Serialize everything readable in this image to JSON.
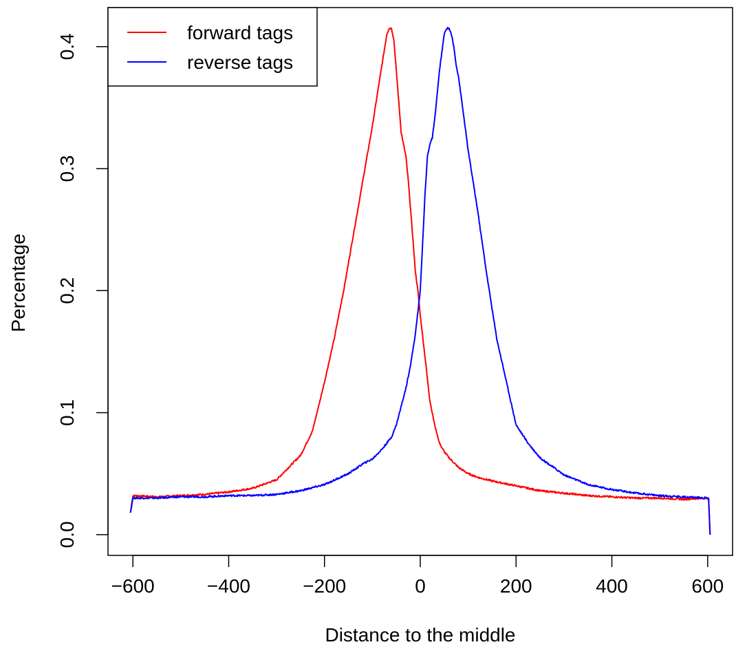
{
  "chart_data": {
    "type": "line",
    "title": "",
    "xlabel": "Distance to the middle",
    "ylabel": "Percentage",
    "xlim": [
      -652,
      652
    ],
    "ylim": [
      -0.017,
      0.432
    ],
    "x_ticks": [
      -600,
      -400,
      -200,
      0,
      200,
      400,
      600
    ],
    "x_tick_labels": [
      "−600",
      "−400",
      "−200",
      "0",
      "200",
      "400",
      "600"
    ],
    "y_ticks": [
      0.0,
      0.1,
      0.2,
      0.3,
      0.4
    ],
    "y_tick_labels": [
      "0.0",
      "0.1",
      "0.2",
      "0.3",
      "0.4"
    ],
    "grid": false,
    "legend_position": "top-left",
    "series": [
      {
        "name": "forward tags",
        "color": "#ff0000",
        "x": [
          -605,
          -600,
          -550,
          -500,
          -450,
          -400,
          -350,
          -300,
          -275,
          -250,
          -225,
          -200,
          -180,
          -160,
          -140,
          -120,
          -100,
          -90,
          -80,
          -70,
          -65,
          -60,
          -55,
          -50,
          -45,
          -40,
          -35,
          -30,
          -25,
          -20,
          -15,
          -10,
          -5,
          0,
          10,
          20,
          30,
          40,
          50,
          60,
          70,
          80,
          100,
          120,
          150,
          175,
          200,
          250,
          300,
          350,
          400,
          450,
          500,
          550,
          600,
          602,
          605
        ],
        "y": [
          0.018,
          0.032,
          0.031,
          0.032,
          0.033,
          0.035,
          0.038,
          0.045,
          0.055,
          0.065,
          0.085,
          0.125,
          0.16,
          0.2,
          0.245,
          0.29,
          0.335,
          0.36,
          0.385,
          0.41,
          0.415,
          0.415,
          0.405,
          0.38,
          0.355,
          0.33,
          0.32,
          0.31,
          0.29,
          0.265,
          0.24,
          0.215,
          0.2,
          0.18,
          0.145,
          0.11,
          0.09,
          0.075,
          0.068,
          0.063,
          0.059,
          0.055,
          0.05,
          0.047,
          0.044,
          0.042,
          0.04,
          0.036,
          0.034,
          0.032,
          0.031,
          0.03,
          0.03,
          0.029,
          0.03,
          0.029,
          0.0
        ],
        "points": 1211
      },
      {
        "name": "reverse tags",
        "color": "#0000ff",
        "x": [
          -605,
          -600,
          -550,
          -500,
          -450,
          -400,
          -350,
          -300,
          -250,
          -200,
          -150,
          -120,
          -100,
          -80,
          -60,
          -50,
          -40,
          -30,
          -20,
          -10,
          0,
          5,
          10,
          15,
          20,
          25,
          30,
          35,
          40,
          45,
          50,
          55,
          60,
          65,
          70,
          75,
          80,
          90,
          100,
          120,
          140,
          160,
          180,
          200,
          225,
          250,
          275,
          300,
          350,
          400,
          450,
          500,
          550,
          600,
          602,
          605
        ],
        "y": [
          0.018,
          0.03,
          0.03,
          0.031,
          0.031,
          0.032,
          0.032,
          0.033,
          0.036,
          0.041,
          0.05,
          0.058,
          0.062,
          0.07,
          0.08,
          0.09,
          0.105,
          0.12,
          0.14,
          0.165,
          0.2,
          0.24,
          0.28,
          0.31,
          0.32,
          0.325,
          0.34,
          0.36,
          0.38,
          0.395,
          0.41,
          0.415,
          0.415,
          0.41,
          0.4,
          0.385,
          0.375,
          0.345,
          0.315,
          0.265,
          0.21,
          0.16,
          0.125,
          0.09,
          0.075,
          0.063,
          0.056,
          0.049,
          0.041,
          0.037,
          0.034,
          0.032,
          0.031,
          0.03,
          0.03,
          0.0
        ],
        "points": 1211
      }
    ]
  }
}
